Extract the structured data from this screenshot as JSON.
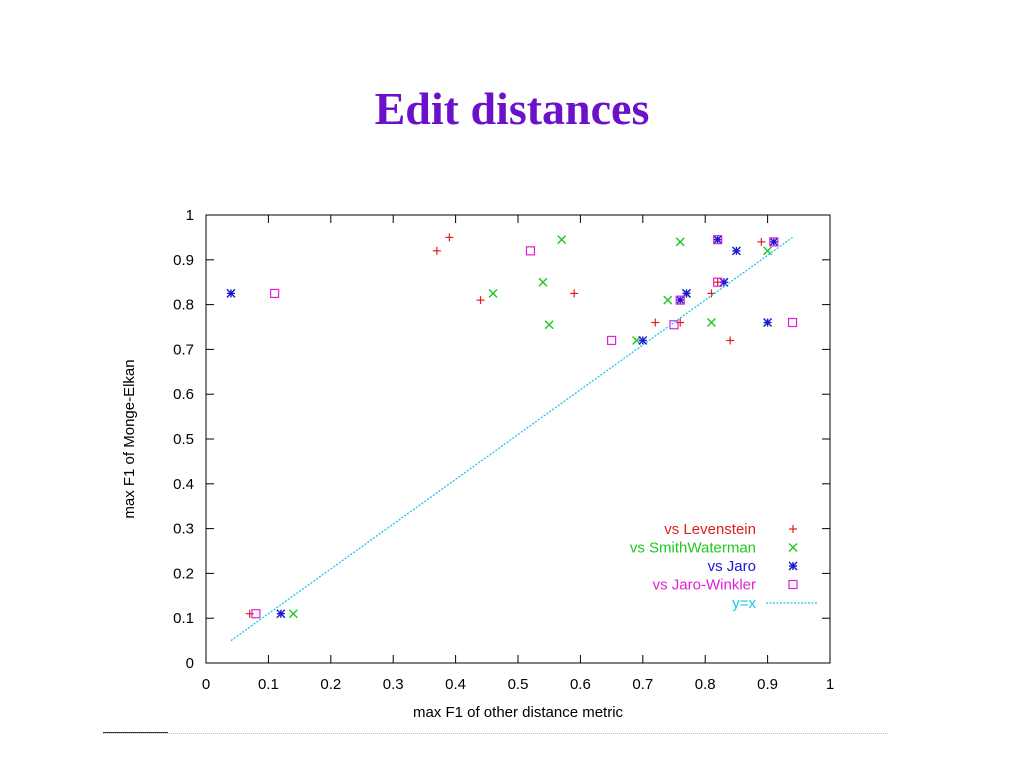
{
  "slide": {
    "title": "Edit distances",
    "title_color": "#6a11c9"
  },
  "chart_data": {
    "type": "scatter",
    "title": "",
    "xlabel": "max F1 of other distance metric",
    "ylabel": "max F1 of Monge-Elkan",
    "xlim": [
      0,
      1
    ],
    "ylim": [
      0,
      1
    ],
    "xticks": [
      "0",
      "0.1",
      "0.2",
      "0.3",
      "0.4",
      "0.5",
      "0.6",
      "0.7",
      "0.8",
      "0.9",
      "1"
    ],
    "yticks": [
      "0",
      "0.1",
      "0.2",
      "0.3",
      "0.4",
      "0.5",
      "0.6",
      "0.7",
      "0.8",
      "0.9",
      "1"
    ],
    "grid": false,
    "legend_position": "bottom-right",
    "series": [
      {
        "name": "vs Levenstein",
        "color": "#e02020",
        "marker": "plus",
        "points": [
          [
            0.07,
            0.11
          ],
          [
            0.37,
            0.92
          ],
          [
            0.39,
            0.95
          ],
          [
            0.44,
            0.81
          ],
          [
            0.59,
            0.825
          ],
          [
            0.72,
            0.76
          ],
          [
            0.76,
            0.76
          ],
          [
            0.77,
            0.825
          ],
          [
            0.81,
            0.825
          ],
          [
            0.82,
            0.85
          ],
          [
            0.84,
            0.72
          ],
          [
            0.89,
            0.94
          ]
        ]
      },
      {
        "name": "vs SmithWaterman",
        "color": "#1ec81e",
        "marker": "cross",
        "points": [
          [
            0.14,
            0.11
          ],
          [
            0.46,
            0.825
          ],
          [
            0.54,
            0.85
          ],
          [
            0.55,
            0.755
          ],
          [
            0.57,
            0.945
          ],
          [
            0.69,
            0.72
          ],
          [
            0.74,
            0.81
          ],
          [
            0.76,
            0.94
          ],
          [
            0.77,
            0.825
          ],
          [
            0.81,
            0.76
          ],
          [
            0.82,
            0.945
          ],
          [
            0.83,
            0.85
          ],
          [
            0.9,
            0.92
          ]
        ]
      },
      {
        "name": "vs Jaro",
        "color": "#1818d0",
        "marker": "star",
        "points": [
          [
            0.04,
            0.825
          ],
          [
            0.12,
            0.11
          ],
          [
            0.7,
            0.72
          ],
          [
            0.76,
            0.81
          ],
          [
            0.77,
            0.825
          ],
          [
            0.82,
            0.945
          ],
          [
            0.83,
            0.85
          ],
          [
            0.85,
            0.92
          ],
          [
            0.9,
            0.76
          ],
          [
            0.91,
            0.94
          ]
        ]
      },
      {
        "name": "vs Jaro-Winkler",
        "color": "#e020d8",
        "marker": "square",
        "points": [
          [
            0.08,
            0.11
          ],
          [
            0.11,
            0.825
          ],
          [
            0.52,
            0.92
          ],
          [
            0.65,
            0.72
          ],
          [
            0.75,
            0.755
          ],
          [
            0.76,
            0.81
          ],
          [
            0.82,
            0.945
          ],
          [
            0.82,
            0.85
          ],
          [
            0.91,
            0.94
          ],
          [
            0.94,
            0.76
          ]
        ]
      },
      {
        "name": "y=x",
        "color": "#18c8e8",
        "marker": "line",
        "points": [
          [
            0.04,
            0.05
          ],
          [
            0.94,
            0.95
          ]
        ]
      }
    ]
  }
}
